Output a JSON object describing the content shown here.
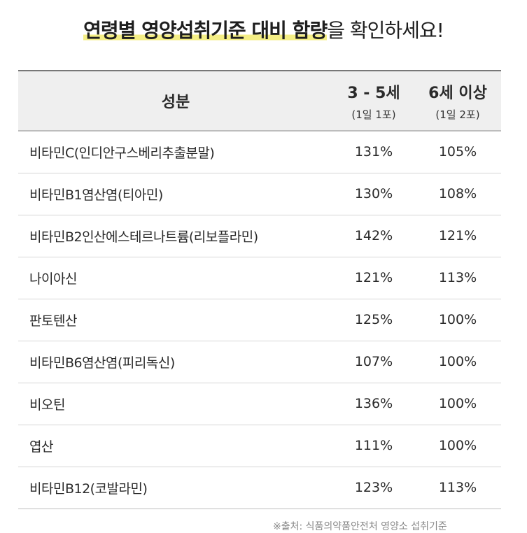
{
  "title": {
    "highlighted": "연령별 영양섭취기준 대비 함량",
    "rest": "을  확인하세요!"
  },
  "table": {
    "headers": {
      "ingredient": "성분",
      "age_3_5": {
        "label": "3 - 5세",
        "dose": "(1일 1포)"
      },
      "age_6_plus": {
        "label": "6세 이상",
        "dose": "(1일 2포)"
      }
    },
    "rows": [
      {
        "name": "비타민C(인디안구스베리추출분말)",
        "age_3_5": "131%",
        "age_6_plus": "105%"
      },
      {
        "name": "비타민B1염산염(티아민)",
        "age_3_5": "130%",
        "age_6_plus": "108%"
      },
      {
        "name": "비타민B2인산에스테르나트륨(리보플라민)",
        "age_3_5": "142%",
        "age_6_plus": "121%"
      },
      {
        "name": "나이아신",
        "age_3_5": "121%",
        "age_6_plus": "113%"
      },
      {
        "name": "판토텐산",
        "age_3_5": "125%",
        "age_6_plus": "100%"
      },
      {
        "name": "비타민B6염산염(피리독신)",
        "age_3_5": "107%",
        "age_6_plus": "100%"
      },
      {
        "name": "비오틴",
        "age_3_5": "136%",
        "age_6_plus": "100%"
      },
      {
        "name": "엽산",
        "age_3_5": "111%",
        "age_6_plus": "100%"
      },
      {
        "name": "비타민B12(코발라민)",
        "age_3_5": "123%",
        "age_6_plus": "113%"
      }
    ]
  },
  "footnote": "※출처: 식품의약품안전처 영양소 섭취기준",
  "colors": {
    "highlight": "#f4ee85",
    "header_bg": "#efefef"
  }
}
